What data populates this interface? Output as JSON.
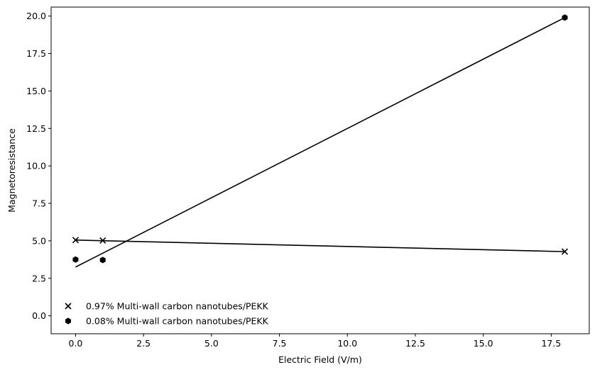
{
  "chart_data": {
    "type": "scatter",
    "title": "",
    "xlabel": "Electric Field (V/m)",
    "ylabel": "Magnetoresistance",
    "xlim": [
      -0.9,
      18.9
    ],
    "ylim": [
      -1.2,
      20.6
    ],
    "xticks": [
      0.0,
      2.5,
      5.0,
      7.5,
      10.0,
      12.5,
      15.0,
      17.5
    ],
    "yticks": [
      0.0,
      2.5,
      5.0,
      7.5,
      10.0,
      12.5,
      15.0,
      17.5,
      20.0
    ],
    "xtick_labels": [
      "0.0",
      "2.5",
      "5.0",
      "7.5",
      "10.0",
      "12.5",
      "15.0",
      "17.5"
    ],
    "ytick_labels": [
      "0.0",
      "2.5",
      "5.0",
      "7.5",
      "10.0",
      "12.5",
      "15.0",
      "17.5",
      "20.0"
    ],
    "grid": false,
    "legend_position": "lower-left",
    "series": [
      {
        "name": "0.97% Multi-wall carbon nanotubes/PEKK",
        "marker": "x",
        "color": "#000000",
        "x": [
          0,
          1,
          18
        ],
        "y": [
          5.05,
          5.02,
          4.28
        ],
        "fit_line": {
          "x": [
            0,
            18
          ],
          "y": [
            5.05,
            4.28
          ]
        }
      },
      {
        "name": "0.08% Multi-wall carbon nanotubes/PEKK",
        "marker": "hexagon",
        "color": "#000000",
        "x": [
          0,
          1,
          18
        ],
        "y": [
          3.75,
          3.72,
          19.9
        ],
        "fit_line": {
          "x": [
            0,
            18
          ],
          "y": [
            3.25,
            19.9
          ]
        }
      }
    ]
  }
}
